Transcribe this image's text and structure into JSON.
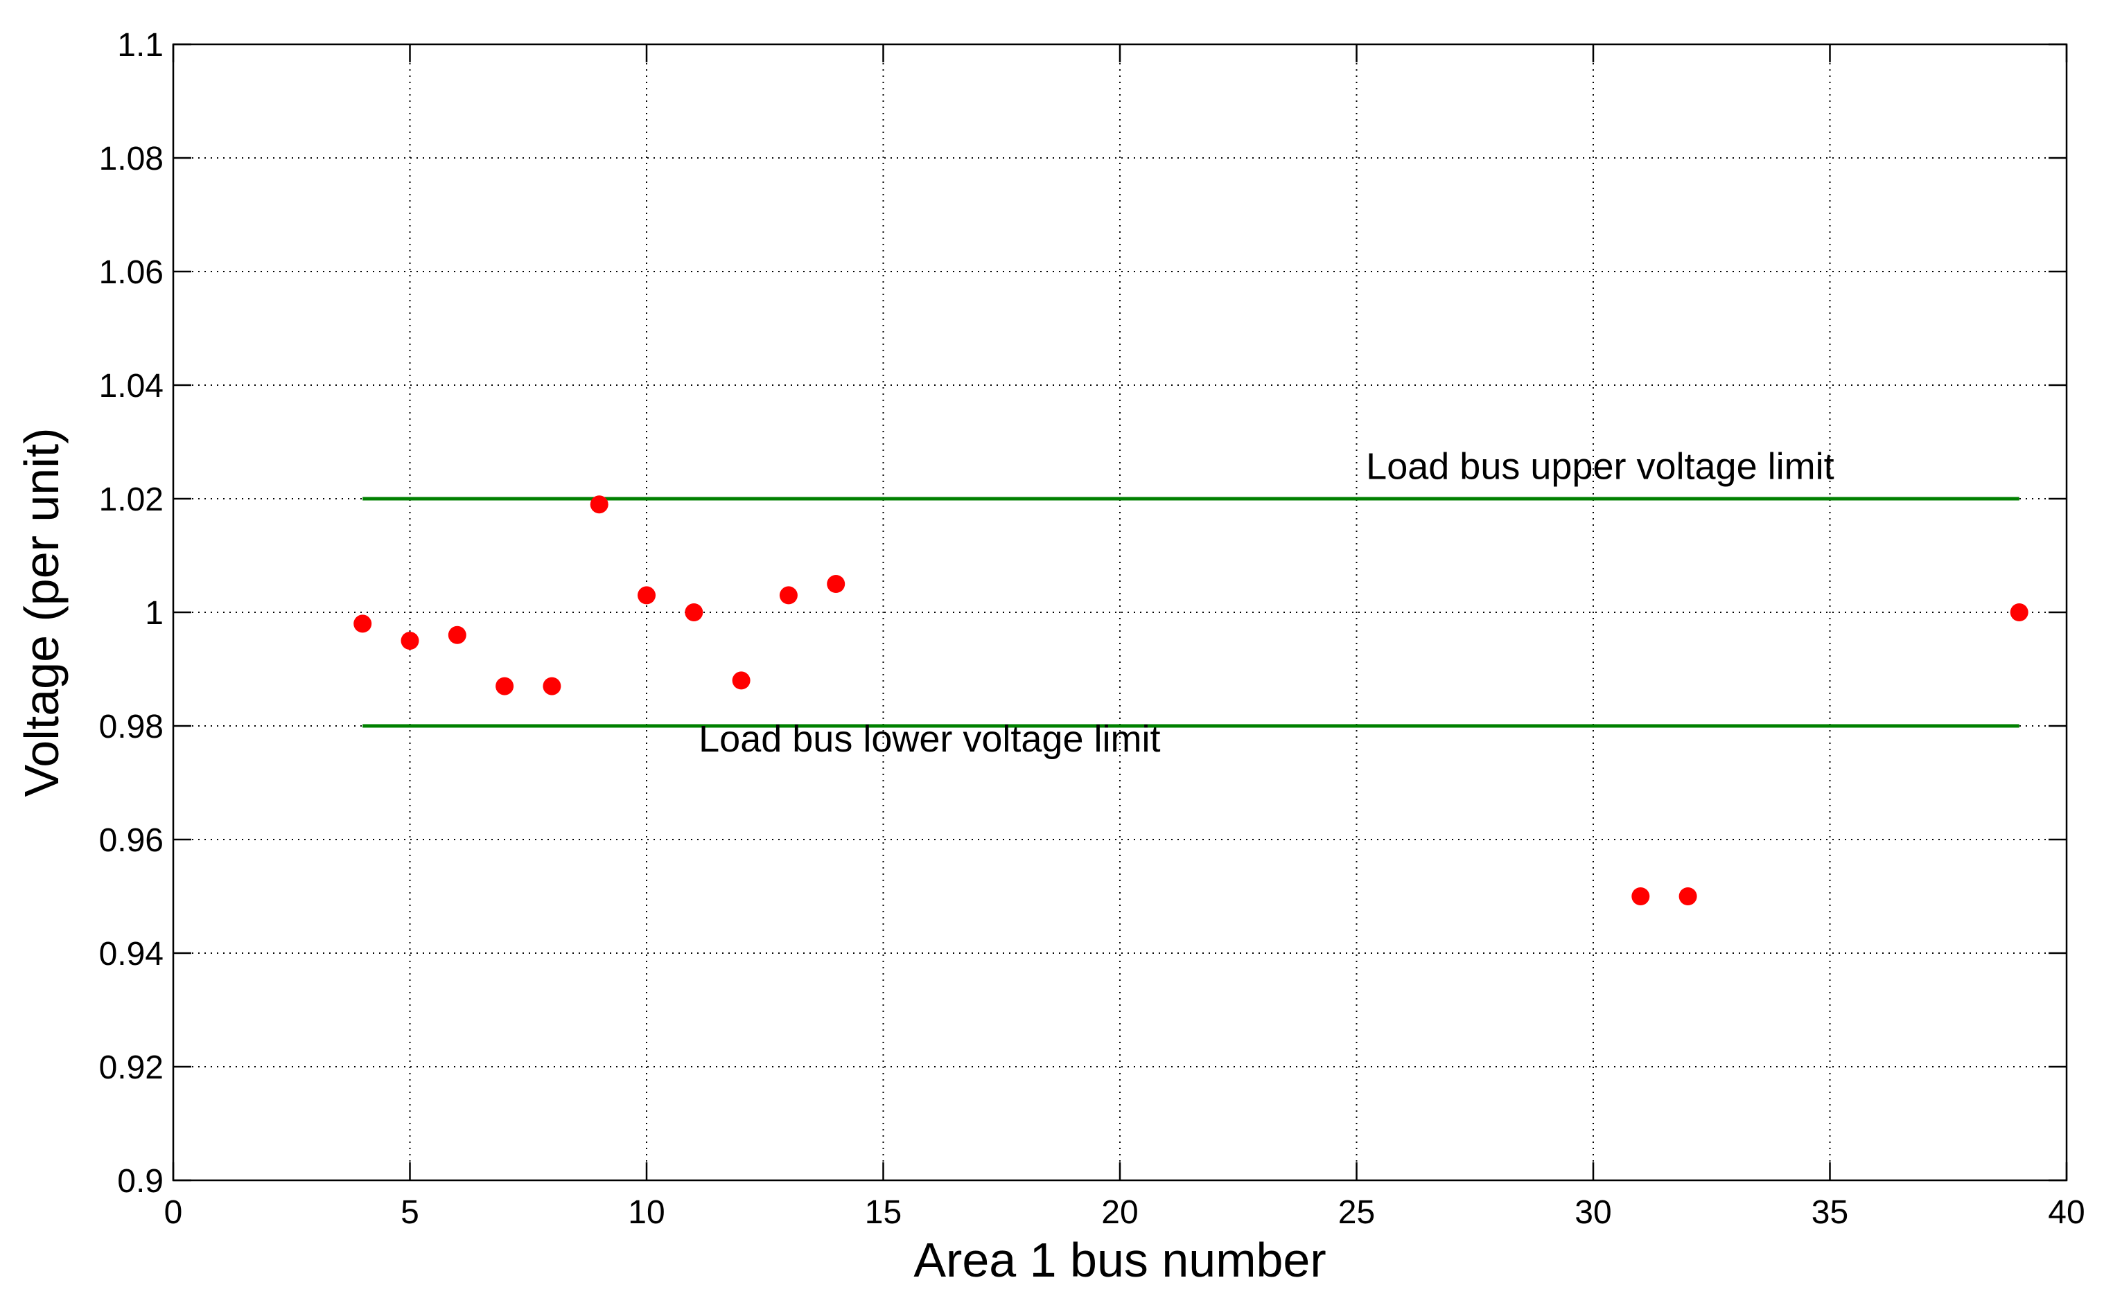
{
  "chart_data": {
    "type": "scatter",
    "title": "",
    "xlabel": "Area 1 bus number",
    "ylabel": "Voltage (per unit)",
    "xlim": [
      0,
      40
    ],
    "ylim": [
      0.9,
      1.1
    ],
    "xticks": [
      0,
      5,
      10,
      15,
      20,
      25,
      30,
      35,
      40
    ],
    "xtick_labels": [
      "0",
      "5",
      "10",
      "15",
      "20",
      "25",
      "30",
      "35",
      "40"
    ],
    "yticks": [
      0.9,
      0.92,
      0.94,
      0.96,
      0.98,
      1.0,
      1.02,
      1.04,
      1.06,
      1.08,
      1.1
    ],
    "ytick_labels": [
      "0.9",
      "0.92",
      "0.94",
      "0.96",
      "0.98",
      "1",
      "1.02",
      "1.04",
      "1.06",
      "1.08",
      "1.1"
    ],
    "grid": true,
    "grid_style": "dotted",
    "series": [
      {
        "type": "scatter",
        "color": "#ff0000",
        "x": [
          4,
          5,
          6,
          7,
          8,
          9,
          10,
          11,
          12,
          13,
          14,
          31,
          32,
          39
        ],
        "y": [
          0.998,
          0.995,
          0.996,
          0.987,
          0.987,
          1.019,
          1.003,
          1.0,
          0.988,
          1.003,
          1.005,
          0.95,
          0.95,
          1.0
        ]
      }
    ],
    "reference_lines": [
      {
        "color": "#008000",
        "x": [
          4,
          39
        ],
        "y": 1.02
      },
      {
        "color": "#008000",
        "x": [
          4,
          39
        ],
        "y": 0.98
      }
    ],
    "annotations": [
      {
        "text": "Load bus upper voltage limit",
        "x": 25.2,
        "y": 1.0235
      },
      {
        "text": "Load bus lower voltage limit",
        "x": 11.1,
        "y": 0.9755
      }
    ]
  }
}
